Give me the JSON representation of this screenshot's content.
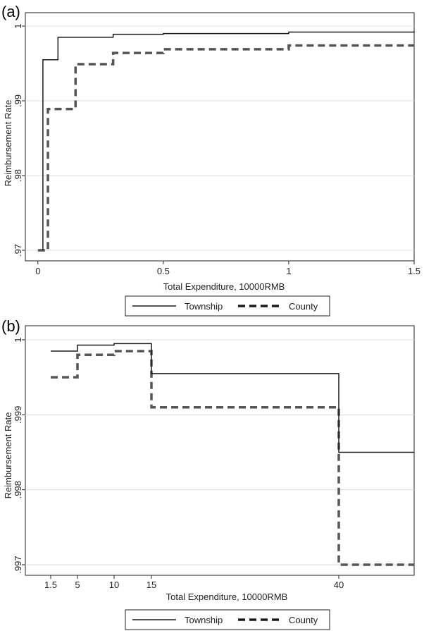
{
  "chart_data": [
    {
      "panel": "(a)",
      "type": "line",
      "step": true,
      "xlabel": "Total Expenditure, 10000RMB",
      "ylabel": "Reimbursement Rate",
      "xlim": [
        -0.05,
        1.5
      ],
      "ylim": [
        0.97,
        1.0
      ],
      "xticks": [
        {
          "value": 0,
          "label": "0"
        },
        {
          "value": 0.5,
          "label": "0.5"
        },
        {
          "value": 1,
          "label": "1"
        },
        {
          "value": 1.5,
          "label": "1.5"
        }
      ],
      "yticks": [
        {
          "value": 0.97,
          "label": ".97"
        },
        {
          "value": 0.98,
          "label": ".98"
        },
        {
          "value": 0.99,
          "label": ".99"
        },
        {
          "value": 1.0,
          "label": "1"
        }
      ],
      "grid": true,
      "legend_position": "bottom",
      "series": [
        {
          "name": "Township",
          "style": "solid",
          "color": "#1a1a1a",
          "x": [
            0.02,
            0.02,
            0.08,
            0.3,
            0.5,
            1.0,
            1.5
          ],
          "y": [
            0.97,
            0.9955,
            0.9985,
            0.9989,
            0.999,
            0.9992,
            0.9993
          ]
        },
        {
          "name": "County",
          "style": "dashed",
          "color": "#555555",
          "x": [
            0,
            0.04,
            0.04,
            0.15,
            0.3,
            0.5,
            1.0,
            1.5
          ],
          "y": [
            0.97,
            0.97,
            0.9889,
            0.9949,
            0.9964,
            0.9969,
            0.9974,
            0.9974
          ]
        }
      ]
    },
    {
      "panel": "(b)",
      "type": "line",
      "step": true,
      "xlabel": "Total Expenditure, 10000RMB",
      "ylabel": "Reimbursement Rate",
      "xlim": [
        -1.5,
        50
      ],
      "ylim": [
        0.997,
        1.0
      ],
      "xticks": [
        {
          "value": 1.5,
          "label": "1.5"
        },
        {
          "value": 5,
          "label": "5"
        },
        {
          "value": 10,
          "label": "10"
        },
        {
          "value": 15,
          "label": "15"
        },
        {
          "value": 40,
          "label": "40"
        }
      ],
      "yticks": [
        {
          "value": 0.997,
          "label": ".997"
        },
        {
          "value": 0.998,
          "label": ".998"
        },
        {
          "value": 0.999,
          "label": ".999"
        },
        {
          "value": 1.0,
          "label": "1"
        }
      ],
      "grid": true,
      "legend_position": "bottom",
      "series": [
        {
          "name": "Township",
          "style": "solid",
          "color": "#1a1a1a",
          "x": [
            1.5,
            5,
            10,
            15,
            40,
            50
          ],
          "y": [
            0.99985,
            0.99993,
            0.99995,
            0.99955,
            0.9985,
            0.9985
          ]
        },
        {
          "name": "County",
          "style": "dashed",
          "color": "#555555",
          "x": [
            1.5,
            5,
            10,
            15,
            40,
            50
          ],
          "y": [
            0.9995,
            0.9998,
            0.99985,
            0.9991,
            0.997,
            0.997
          ]
        }
      ]
    }
  ]
}
